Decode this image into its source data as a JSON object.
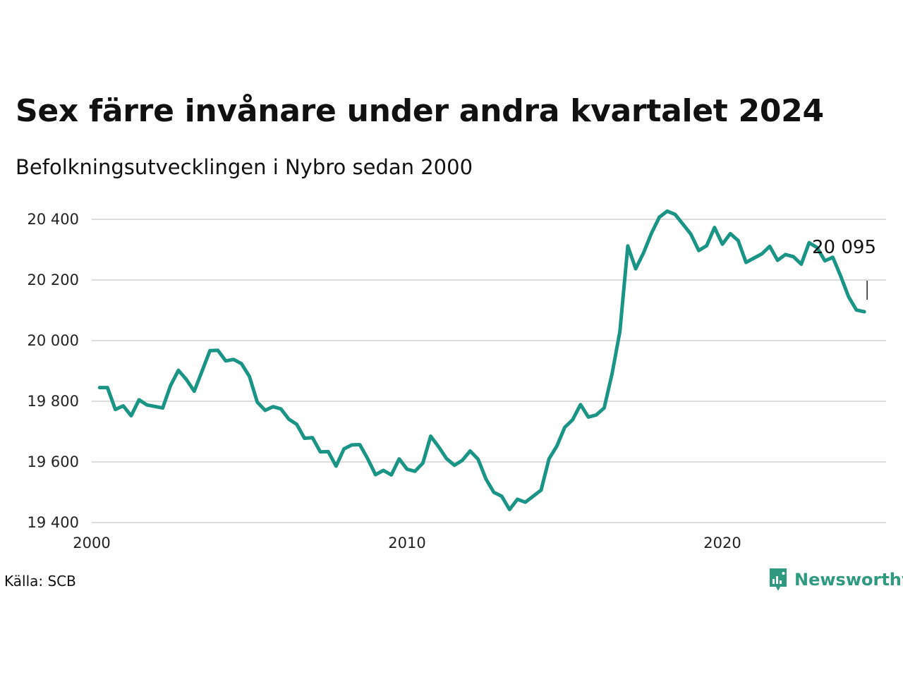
{
  "chart_data": {
    "type": "line",
    "title": "Sex färre invånare under andra kvartalet 2024",
    "subtitle": "Befolkningsutvecklingen i Nybro sedan 2000",
    "xlabel": "",
    "ylabel": "",
    "xlim": [
      2000,
      2025.4
    ],
    "ylim": [
      19400,
      20435
    ],
    "x_ticks": [
      2000,
      2010,
      2020
    ],
    "x_tick_labels": [
      "2000",
      "2010",
      "2020"
    ],
    "y_ticks": [
      19400,
      19600,
      19800,
      20000,
      20200,
      20400
    ],
    "y_tick_labels": [
      "19 400",
      "19 600",
      "19 800",
      "20 000",
      "20 200",
      "20 400"
    ],
    "grid": true,
    "color": "#1a9484",
    "series": [
      {
        "x": [
          2000.25,
          2000.5,
          2000.75,
          2001.0,
          2001.25,
          2001.5,
          2001.75,
          2002.0,
          2002.25,
          2002.5,
          2002.75,
          2003.0,
          2003.25,
          2003.5,
          2003.75,
          2004.0,
          2004.25,
          2004.5,
          2004.75,
          2005.0,
          2005.25,
          2005.5,
          2005.75,
          2006.0,
          2006.25,
          2006.5,
          2006.75,
          2007.0,
          2007.25,
          2007.5,
          2007.75,
          2008.0,
          2008.25,
          2008.5,
          2008.75,
          2009.0,
          2009.25,
          2009.5,
          2009.75,
          2010.0,
          2010.25,
          2010.5,
          2010.75,
          2011.0,
          2011.25,
          2011.5,
          2011.75,
          2012.0,
          2012.25,
          2012.5,
          2012.75,
          2013.0,
          2013.25,
          2013.5,
          2013.75,
          2014.0,
          2014.25,
          2014.5,
          2014.75,
          2015.0,
          2015.25,
          2015.5,
          2015.75,
          2016.0,
          2016.25,
          2016.5,
          2016.75,
          2017.0,
          2017.25,
          2017.5,
          2017.75,
          2018.0,
          2018.25,
          2018.5,
          2018.75,
          2019.0,
          2019.25,
          2019.5,
          2019.75,
          2020.0,
          2020.25,
          2020.5,
          2020.75,
          2021.0,
          2021.25,
          2021.5,
          2021.75,
          2022.0,
          2022.25,
          2022.5,
          2022.75,
          2023.0,
          2023.25,
          2023.5,
          2023.75,
          2024.0,
          2024.25,
          2024.5
        ],
        "values": [
          19845,
          19845,
          19773,
          19785,
          19752,
          19805,
          19788,
          19783,
          19778,
          19852,
          19902,
          19872,
          19833,
          19900,
          19967,
          19968,
          19933,
          19938,
          19924,
          19882,
          19797,
          19770,
          19782,
          19775,
          19741,
          19724,
          19678,
          19680,
          19633,
          19634,
          19586,
          19643,
          19656,
          19657,
          19611,
          19558,
          19572,
          19557,
          19610,
          19576,
          19569,
          19596,
          19685,
          19650,
          19611,
          19589,
          19605,
          19636,
          19609,
          19544,
          19500,
          19487,
          19443,
          19477,
          19467,
          19487,
          19507,
          19610,
          19652,
          19714,
          19739,
          19789,
          19748,
          19755,
          19778,
          19891,
          20030,
          20312,
          20237,
          20290,
          20354,
          20407,
          20427,
          20416,
          20384,
          20351,
          20297,
          20313,
          20373,
          20318,
          20353,
          20330,
          20258,
          20272,
          20286,
          20311,
          20265,
          20284,
          20277,
          20252,
          20323,
          20307,
          20263,
          20275,
          20213,
          20145,
          20101,
          20095
        ]
      }
    ],
    "end_label": "20 095",
    "source": "Källa: SCB",
    "brand": "Newsworthy"
  }
}
